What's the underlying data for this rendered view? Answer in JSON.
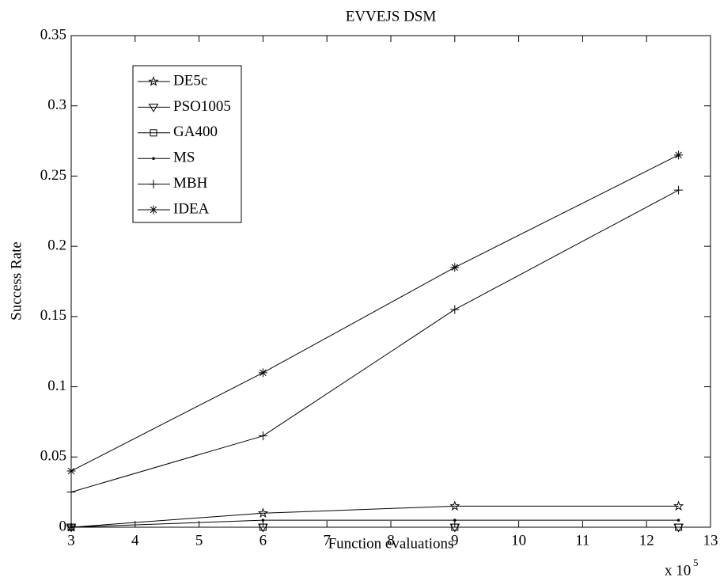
{
  "chart_data": {
    "type": "line",
    "title": "EVVEJS DSM",
    "x_label": "Function evaluations",
    "y_label": "Success Rate",
    "x_multiplier": {
      "base": "x 10",
      "exponent": "5"
    },
    "x": [
      3,
      6,
      9,
      12.5
    ],
    "series": [
      {
        "name": "DE5c",
        "color": "#000000",
        "marker": "pentagram",
        "values": [
          0,
          0.01,
          0.015,
          0.015
        ]
      },
      {
        "name": "PSO1005",
        "color": "#000000",
        "marker": "triangle-down",
        "values": [
          0,
          0,
          0,
          0
        ]
      },
      {
        "name": "GA400",
        "color": "#000000",
        "marker": "square",
        "values": [
          0,
          0,
          0,
          0
        ]
      },
      {
        "name": "MS",
        "color": "#000000",
        "marker": "dot",
        "values": [
          0,
          0.005,
          0.005,
          0.005
        ]
      },
      {
        "name": "MBH",
        "color": "#000000",
        "marker": "plus",
        "values": [
          0.025,
          0.065,
          0.155,
          0.24
        ]
      },
      {
        "name": "IDEA",
        "color": "#000000",
        "marker": "asterisk",
        "values": [
          0.04,
          0.11,
          0.185,
          0.265
        ]
      }
    ],
    "xlim": [
      3,
      13
    ],
    "xticks": [
      3,
      4,
      5,
      6,
      7,
      8,
      9,
      10,
      11,
      12,
      13
    ],
    "ylim": [
      0,
      0.35
    ],
    "yticks": [
      0,
      0.05,
      0.1,
      0.15,
      0.2,
      0.25,
      0.3,
      0.35
    ],
    "grid": false,
    "legend": "upper-left"
  }
}
